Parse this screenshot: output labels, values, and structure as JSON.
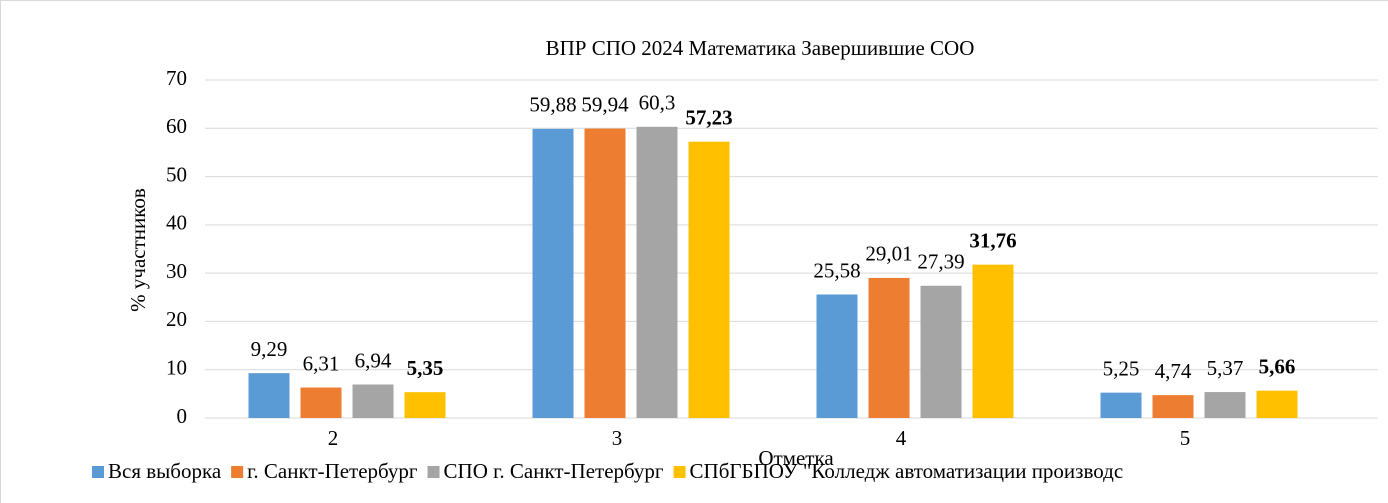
{
  "chart_data": {
    "type": "bar",
    "title": "ВПР СПО 2024 Математика Завершившие СОО",
    "y_label": "% участников",
    "x_label": "Отметка",
    "categories": [
      "2",
      "3",
      "4",
      "5"
    ],
    "series": [
      {
        "name": "Вся выборка",
        "color": "#5b9bd5",
        "values": [
          9.29,
          59.88,
          25.58,
          5.25
        ],
        "value_labels": [
          "9,29",
          "59,88",
          "25,58",
          "5,25"
        ]
      },
      {
        "name": "г. Санкт-Петербург",
        "color": "#ed7d31",
        "values": [
          6.31,
          59.94,
          29.01,
          4.74
        ],
        "value_labels": [
          "6,31",
          "59,94",
          "29,01",
          "4,74"
        ]
      },
      {
        "name": "СПО г. Санкт-Петербург",
        "color": "#a5a5a5",
        "values": [
          6.94,
          60.3,
          27.39,
          5.37
        ],
        "value_labels": [
          "6,94",
          "60,3",
          "27,39",
          "5,37"
        ]
      },
      {
        "name": "СПбГБПОУ \"Колледж автоматизации производс",
        "color": "#ffc000",
        "label_color": "#00b050",
        "label_bold": true,
        "values": [
          5.35,
          57.23,
          31.76,
          5.66
        ],
        "value_labels": [
          "5,35",
          "57,23",
          "31,76",
          "5,66"
        ]
      }
    ],
    "ylim": [
      0,
      70
    ],
    "yticks": [
      0,
      10,
      20,
      30,
      40,
      50,
      60,
      70
    ],
    "grid": true,
    "legend": "bottom"
  }
}
